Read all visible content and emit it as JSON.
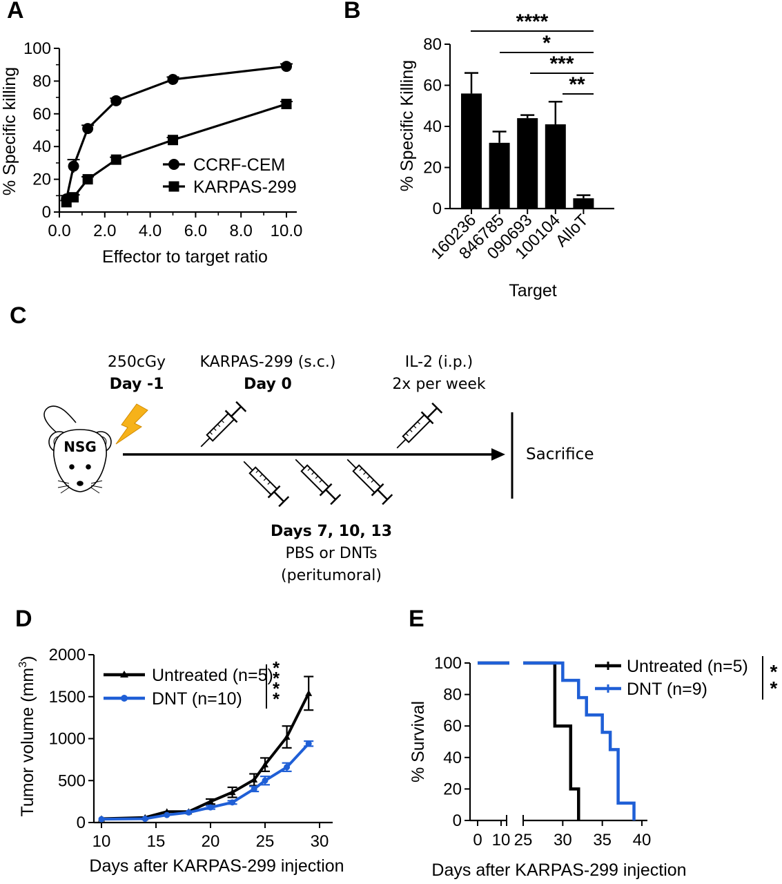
{
  "panels": {
    "A": "A",
    "B": "B",
    "C": "C",
    "D": "D",
    "E": "E"
  },
  "colors": {
    "black": "#000000",
    "blue": "#1f5fd6",
    "bolt": "#f6b21a"
  },
  "chart_data": [
    {
      "id": "A",
      "type": "line",
      "xlabel": "Effector to target ratio",
      "ylabel": "% Specific killing",
      "xlim": [
        0,
        10.5
      ],
      "ylim": [
        0,
        100
      ],
      "xticks": [
        "0.0",
        "2.0",
        "4.0",
        "6.0",
        "8.0",
        "10.0"
      ],
      "yticks": [
        "0",
        "20",
        "40",
        "60",
        "80",
        "100"
      ],
      "series": [
        {
          "name": "CCRF-CEM",
          "marker": "circle",
          "x": [
            0.3125,
            0.625,
            1.25,
            2.5,
            5,
            10
          ],
          "y": [
            8,
            28,
            51,
            68,
            81,
            89
          ],
          "err": [
            2,
            4,
            2,
            1.5,
            1.5,
            1.5
          ]
        },
        {
          "name": "KARPAS-299",
          "marker": "square",
          "x": [
            0.3125,
            0.625,
            1.25,
            2.5,
            5,
            10
          ],
          "y": [
            6,
            9,
            20,
            32,
            44,
            66
          ],
          "err": [
            1,
            1.5,
            1.5,
            1.5,
            1.5,
            1.5
          ]
        }
      ]
    },
    {
      "id": "B",
      "type": "bar",
      "xlabel": "Target",
      "ylabel": "% Specific Killing",
      "ylim": [
        0,
        80
      ],
      "yticks": [
        "0",
        "20",
        "40",
        "60",
        "80"
      ],
      "categories": [
        "160236",
        "846785",
        "090693",
        "100104",
        "AlloT"
      ],
      "values": [
        56,
        32,
        44,
        41,
        5
      ],
      "errors": [
        10,
        5.5,
        1.5,
        11,
        1.5
      ],
      "significance": [
        {
          "from": 0,
          "to": 4,
          "label": "****"
        },
        {
          "from": 1,
          "to": 4,
          "label": "*"
        },
        {
          "from": 2,
          "to": 4,
          "label": "***"
        },
        {
          "from": 3,
          "to": 4,
          "label": "**"
        }
      ]
    },
    {
      "id": "D",
      "type": "line",
      "xlabel": "Days after KARPAS-299 injection",
      "ylabel": "Tumor volume (mm",
      "ylabel_sup": "3",
      "ylabel_end": ")",
      "xlim": [
        9,
        31
      ],
      "ylim": [
        0,
        2000
      ],
      "xticks": [
        "10",
        "15",
        "20",
        "25",
        "30"
      ],
      "yticks": [
        "0",
        "500",
        "1000",
        "1500",
        "2000"
      ],
      "significance": "****",
      "series": [
        {
          "name": "Untreated (n=5)",
          "color": "#000000",
          "x": [
            10,
            14,
            16,
            18,
            20,
            22,
            24,
            25,
            27,
            29
          ],
          "y": [
            45,
            60,
            130,
            130,
            250,
            360,
            510,
            690,
            1020,
            1540
          ],
          "err": [
            10,
            10,
            15,
            15,
            30,
            60,
            70,
            80,
            130,
            200
          ]
        },
        {
          "name": "DNT (n=10)",
          "color": "#1f5fd6",
          "x": [
            10,
            14,
            16,
            18,
            20,
            22,
            24,
            25,
            27,
            29
          ],
          "y": [
            40,
            45,
            90,
            120,
            180,
            240,
            400,
            500,
            660,
            940
          ],
          "err": [
            5,
            5,
            10,
            10,
            20,
            20,
            30,
            50,
            50,
            30
          ]
        }
      ]
    },
    {
      "id": "E",
      "type": "line",
      "xlabel": "Days after KARPAS-299 injection",
      "ylabel": "% Survival",
      "ylim": [
        0,
        100
      ],
      "xticks": [
        "0",
        "10",
        "25",
        "30",
        "35",
        "40"
      ],
      "yticks": [
        "0",
        "20",
        "40",
        "60",
        "80",
        "100"
      ],
      "significance": "**",
      "series": [
        {
          "name": "Untreated (n=5)",
          "color": "#000000",
          "steps": [
            [
              0,
              100
            ],
            [
              29,
              100
            ],
            [
              29,
              60
            ],
            [
              31,
              60
            ],
            [
              31,
              20
            ],
            [
              32,
              20
            ],
            [
              32,
              0
            ]
          ]
        },
        {
          "name": "DNT (n=9)",
          "color": "#1f5fd6",
          "steps": [
            [
              0,
              100
            ],
            [
              30,
              100
            ],
            [
              30,
              89
            ],
            [
              32,
              89
            ],
            [
              32,
              78
            ],
            [
              33,
              78
            ],
            [
              33,
              67
            ],
            [
              35,
              67
            ],
            [
              35,
              56
            ],
            [
              36,
              56
            ],
            [
              36,
              45
            ],
            [
              37,
              45
            ],
            [
              37,
              11
            ],
            [
              39,
              11
            ],
            [
              39,
              0
            ]
          ]
        }
      ]
    }
  ],
  "schema": {
    "mouse_label": "NSG",
    "irradiation": {
      "line1": "250cGy",
      "line2": "Day -1"
    },
    "injection": {
      "line1": "KARPAS-299 (s.c.)",
      "line2": "Day 0"
    },
    "il2": {
      "line1": "IL-2 (i.p.)",
      "line2": "2x per week"
    },
    "end_label": "Sacrifice",
    "treatment": {
      "line1": "Days 7, 10, 13",
      "line2": "PBS or DNTs",
      "line3": "(peritumoral)"
    }
  }
}
